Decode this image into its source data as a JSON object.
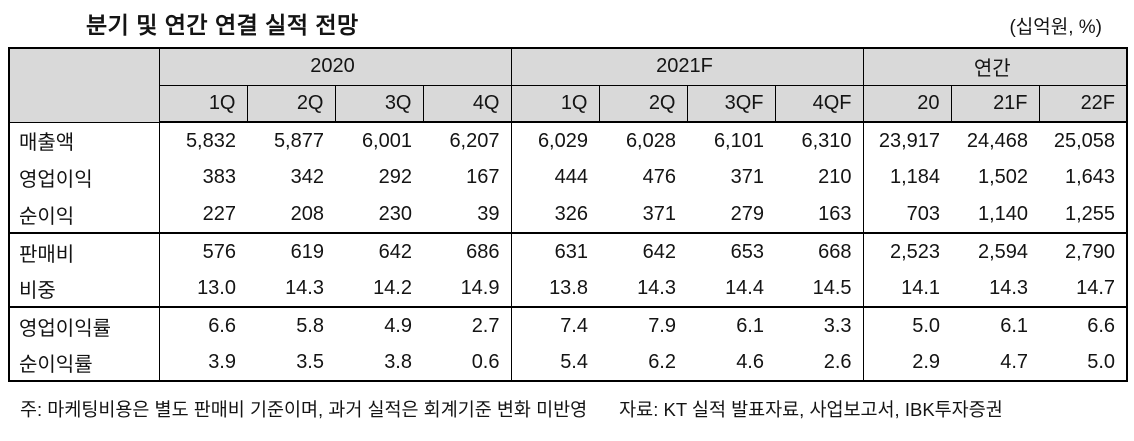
{
  "title": "분기 및 연간 연결 실적 전망",
  "unit": "(십억원, %)",
  "footnote": "주:  마케팅비용은 별도 판매비 기준이며, 과거 실적은 회계기준 변화 미반영",
  "source": "자료: KT 실적 발표자료, 사업보고서, IBK투자증권",
  "chart_data": {
    "type": "table",
    "title": "분기 및 연간 연결 실적 전망",
    "unit": "(십억원, %)",
    "column_groups": [
      {
        "label": "2020",
        "span": 4
      },
      {
        "label": "2021F",
        "span": 4
      },
      {
        "label": "연간",
        "span": 3
      }
    ],
    "columns": [
      "1Q",
      "2Q",
      "3Q",
      "4Q",
      "1Q",
      "2Q",
      "3QF",
      "4QF",
      "20",
      "21F",
      "22F"
    ],
    "rows": [
      {
        "label": "매출액",
        "values": [
          "5,832",
          "5,877",
          "6,001",
          "6,207",
          "6,029",
          "6,028",
          "6,101",
          "6,310",
          "23,917",
          "24,468",
          "25,058"
        ]
      },
      {
        "label": "영업이익",
        "values": [
          "383",
          "342",
          "292",
          "167",
          "444",
          "476",
          "371",
          "210",
          "1,184",
          "1,502",
          "1,643"
        ]
      },
      {
        "label": "순이익",
        "values": [
          "227",
          "208",
          "230",
          "39",
          "326",
          "371",
          "279",
          "163",
          "703",
          "1,140",
          "1,255"
        ]
      },
      {
        "label": "판매비",
        "values": [
          "576",
          "619",
          "642",
          "686",
          "631",
          "642",
          "653",
          "668",
          "2,523",
          "2,594",
          "2,790"
        ]
      },
      {
        "label": "비중",
        "values": [
          "13.0",
          "14.3",
          "14.2",
          "14.9",
          "13.8",
          "14.3",
          "14.4",
          "14.5",
          "14.1",
          "14.3",
          "14.7"
        ]
      },
      {
        "label": "영업이익률",
        "values": [
          "6.6",
          "5.8",
          "4.9",
          "2.7",
          "7.4",
          "7.9",
          "6.1",
          "3.3",
          "5.0",
          "6.1",
          "6.6"
        ]
      },
      {
        "label": "순이익률",
        "values": [
          "3.9",
          "3.5",
          "3.8",
          "0.6",
          "5.4",
          "6.2",
          "4.6",
          "2.6",
          "2.9",
          "4.7",
          "5.0"
        ]
      }
    ],
    "group_separators_after_rows": [
      2,
      4
    ],
    "group_start_columns": [
      0,
      4,
      8
    ]
  }
}
